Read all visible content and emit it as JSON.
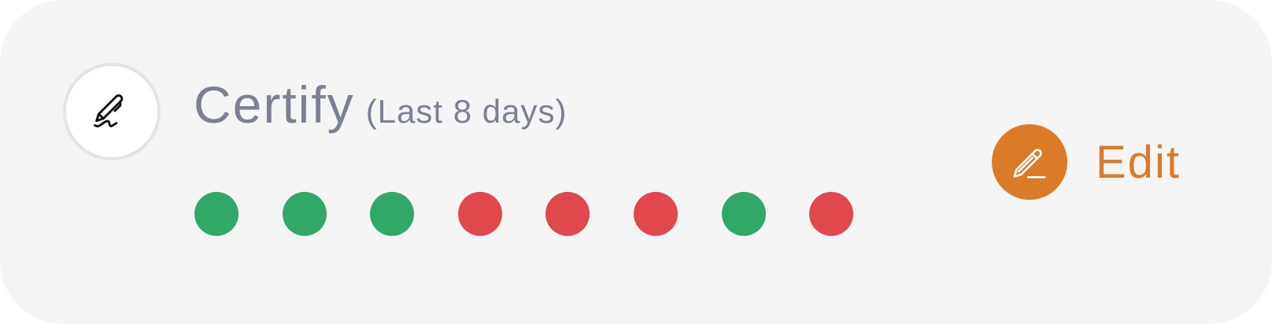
{
  "colors": {
    "accent": "#d97b29",
    "success": "#32a868",
    "failure": "#e0484c",
    "title_text": "#7b8193"
  },
  "header": {
    "icon": "signature-pen-icon",
    "title": "Certify",
    "subtitle": "(Last 8 days)"
  },
  "history": [
    {
      "status": "success"
    },
    {
      "status": "success"
    },
    {
      "status": "success"
    },
    {
      "status": "failure"
    },
    {
      "status": "failure"
    },
    {
      "status": "failure"
    },
    {
      "status": "success"
    },
    {
      "status": "failure"
    }
  ],
  "edit": {
    "icon": "pencil-icon",
    "label": "Edit"
  }
}
